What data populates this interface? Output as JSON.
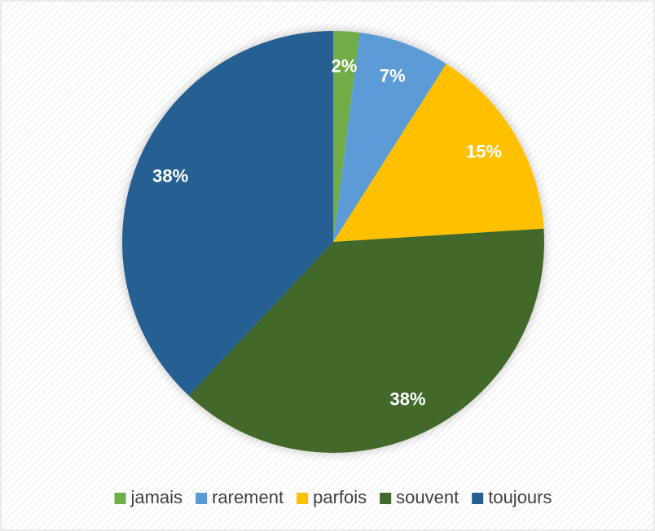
{
  "chart_data": {
    "type": "pie",
    "categories": [
      "jamais",
      "rarement",
      "parfois",
      "souvent",
      "toujours"
    ],
    "values": [
      2,
      7,
      15,
      38,
      38
    ],
    "value_labels": [
      "2%",
      "7%",
      "15%",
      "38%",
      "38%"
    ],
    "colors": [
      "#70ad47",
      "#5b9bd5",
      "#ffc000",
      "#43682b",
      "#255e91"
    ],
    "legend": "bottom"
  }
}
